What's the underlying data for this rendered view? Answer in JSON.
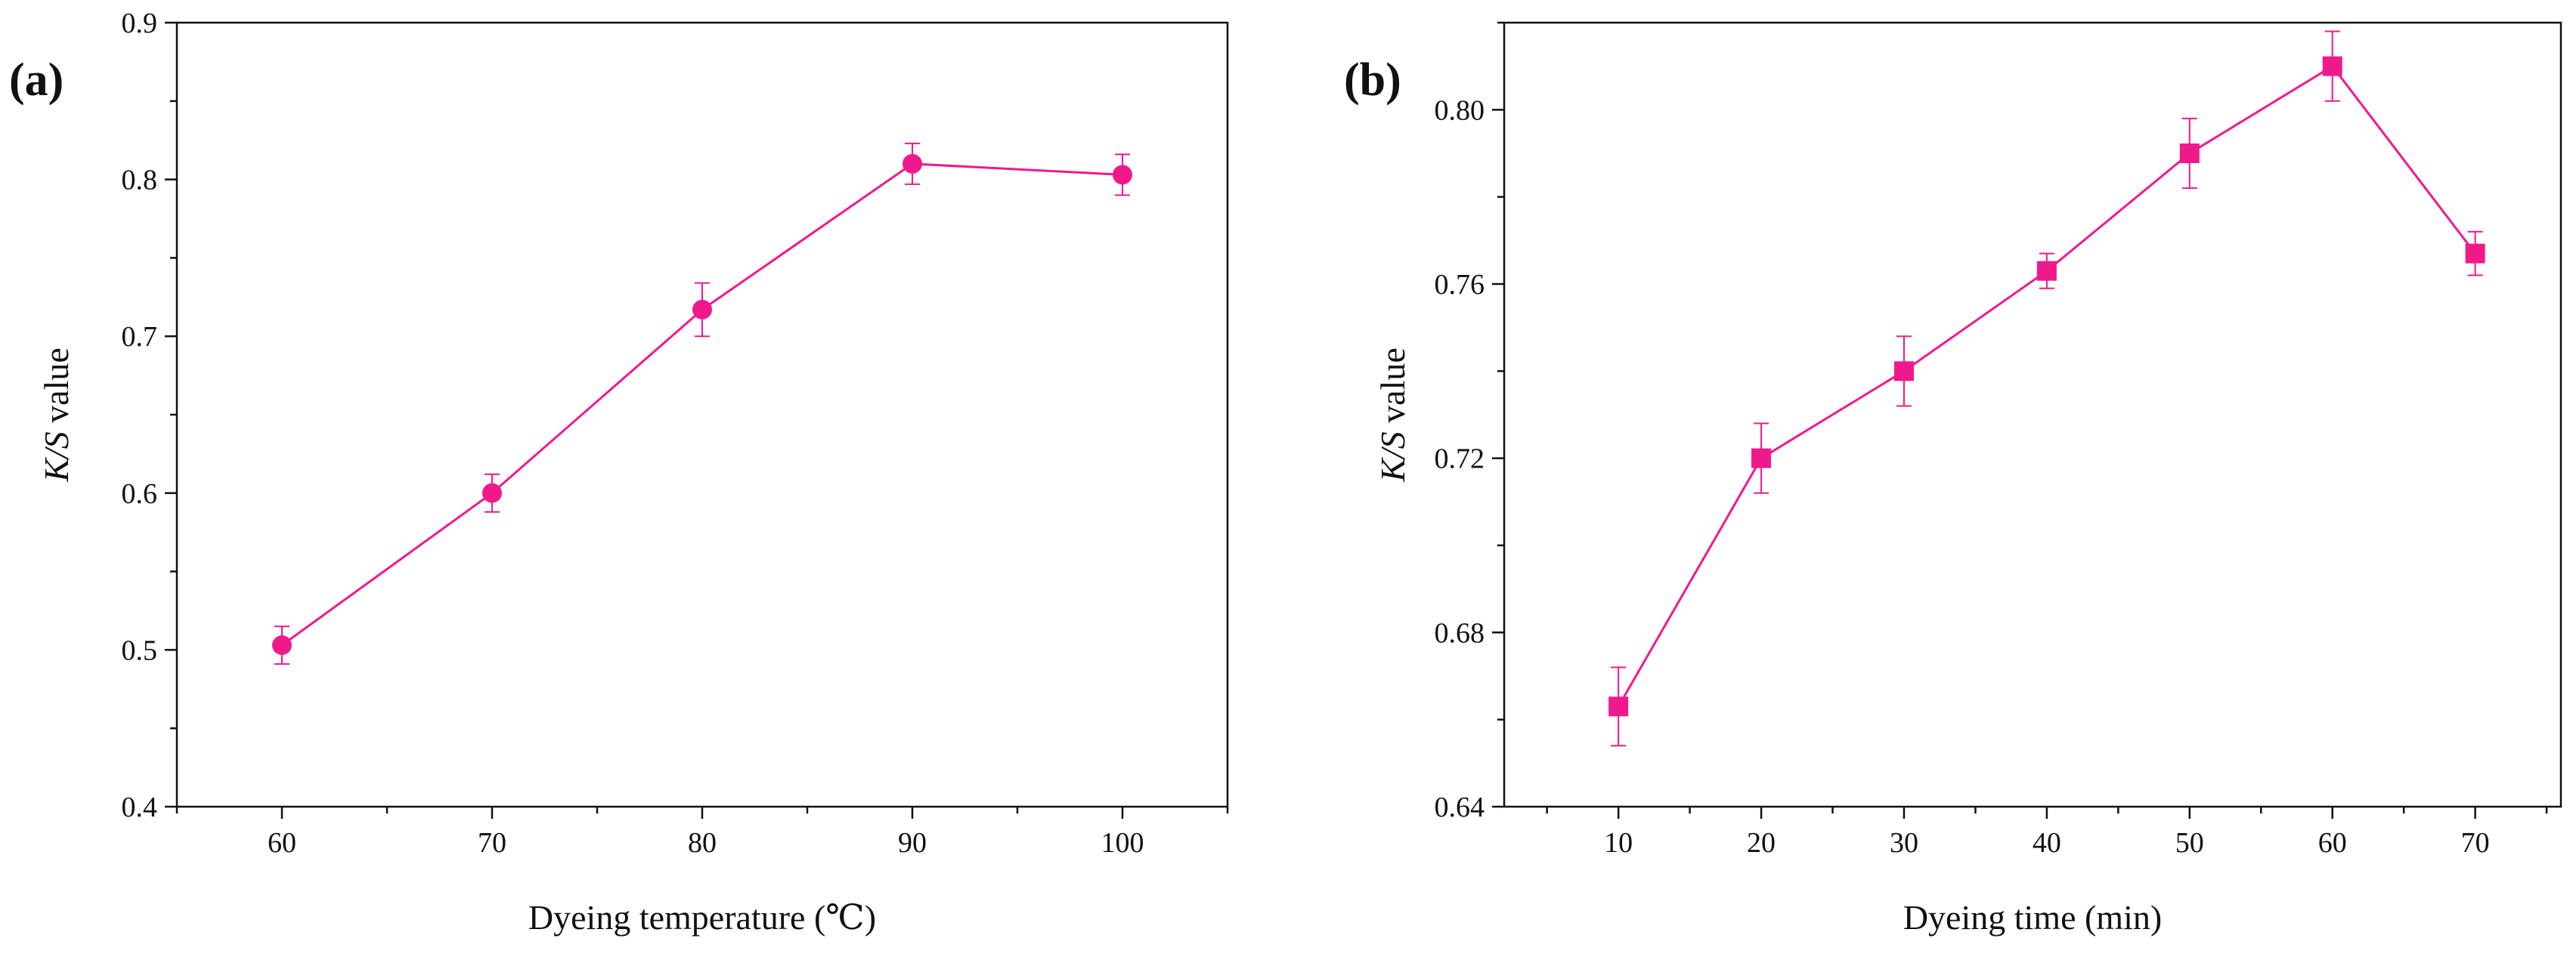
{
  "colors": {
    "series": "#F0198C",
    "axis": "#111111",
    "background": "#ffffff"
  },
  "chart_data": [
    {
      "type": "line",
      "panel_label": "(a)",
      "title": "",
      "xlabel": "Dyeing temperature (℃)",
      "ylabel_italic": "K/S",
      "ylabel_rest": " value",
      "xlim": [
        55,
        105
      ],
      "ylim": [
        0.4,
        0.9
      ],
      "xticks": [
        60,
        70,
        80,
        90,
        100
      ],
      "xtick_labels": [
        "60",
        "70",
        "80",
        "90",
        "100"
      ],
      "yticks": [
        0.4,
        0.5,
        0.6,
        0.7,
        0.8,
        0.9
      ],
      "ytick_labels": [
        "0.4",
        "0.5",
        "0.6",
        "0.7",
        "0.8",
        "0.9"
      ],
      "marker": "circle",
      "grid": false,
      "series": [
        {
          "name": "K/S value",
          "x": [
            60,
            70,
            80,
            90,
            100
          ],
          "y": [
            0.503,
            0.6,
            0.717,
            0.81,
            0.803
          ],
          "err": [
            0.012,
            0.012,
            0.017,
            0.013,
            0.013
          ]
        }
      ]
    },
    {
      "type": "line",
      "panel_label": "(b)",
      "title": "",
      "xlabel": "Dyeing time (min)",
      "ylabel_italic": "K/S",
      "ylabel_rest": " value",
      "xlim": [
        2,
        76
      ],
      "ylim": [
        0.64,
        0.82
      ],
      "xticks": [
        10,
        20,
        30,
        40,
        50,
        60,
        70
      ],
      "xtick_labels": [
        "10",
        "20",
        "30",
        "40",
        "50",
        "60",
        "70"
      ],
      "yticks": [
        0.64,
        0.68,
        0.72,
        0.76,
        0.8
      ],
      "ytick_labels": [
        "0.64",
        "0.68",
        "0.72",
        "0.76",
        "0.80"
      ],
      "marker": "square",
      "grid": false,
      "series": [
        {
          "name": "K/S value",
          "x": [
            10,
            20,
            30,
            40,
            50,
            60,
            70
          ],
          "y": [
            0.663,
            0.72,
            0.74,
            0.763,
            0.79,
            0.81,
            0.767
          ],
          "err": [
            0.009,
            0.008,
            0.008,
            0.004,
            0.008,
            0.008,
            0.005
          ]
        }
      ]
    }
  ]
}
